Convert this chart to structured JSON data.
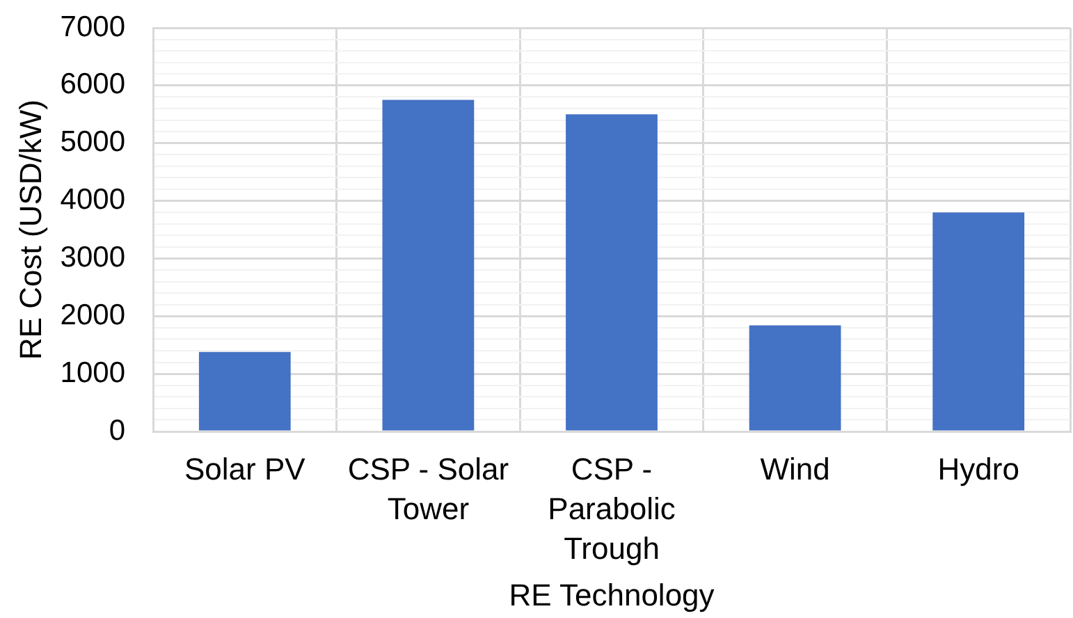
{
  "chart_data": {
    "type": "bar",
    "xlabel": "RE Technology",
    "ylabel": "RE Cost (USD/kW)",
    "categories": [
      "Solar PV",
      "CSP - Solar Tower",
      "CSP - Parabolic Trough",
      "Wind",
      "Hydro"
    ],
    "values": [
      1380,
      5750,
      5500,
      1840,
      3800
    ],
    "color": "#4472c4",
    "ylim": [
      0,
      7000
    ],
    "yticks": [
      0,
      {
        "value": 200,
        "label": null
      },
      {
        "value": 400,
        "label": null
      },
      {
        "value": 600,
        "label": null
      },
      {
        "value": 800,
        "label": null
      },
      1000,
      {
        "value": 1200,
        "label": null
      },
      {
        "value": 1400,
        "label": null
      },
      {
        "value": 1600,
        "label": null
      },
      {
        "value": 1800,
        "label": null
      },
      2000,
      {
        "value": 2200,
        "label": null
      },
      {
        "value": 2400,
        "label": null
      },
      {
        "value": 2600,
        "label": null
      },
      {
        "value": 2800,
        "label": null
      },
      3000,
      {
        "value": 3200,
        "label": null
      },
      {
        "value": 3400,
        "label": null
      },
      {
        "value": 3600,
        "label": null
      },
      {
        "value": 3800,
        "label": null
      },
      4000,
      {
        "value": 4200,
        "label": null
      },
      {
        "value": 4400,
        "label": null
      },
      {
        "value": 4600,
        "label": null
      },
      {
        "value": 4800,
        "label": null
      },
      5000,
      {
        "value": 5200,
        "label": null
      },
      {
        "value": 5400,
        "label": null
      },
      {
        "value": 5600,
        "label": null
      },
      {
        "value": 5800,
        "label": null
      },
      6000,
      {
        "value": 6200,
        "label": null
      },
      {
        "value": 6400,
        "label": null
      },
      {
        "value": 6600,
        "label": null
      },
      {
        "value": 6800,
        "label": null
      },
      7000
    ],
    "grid": true
  }
}
